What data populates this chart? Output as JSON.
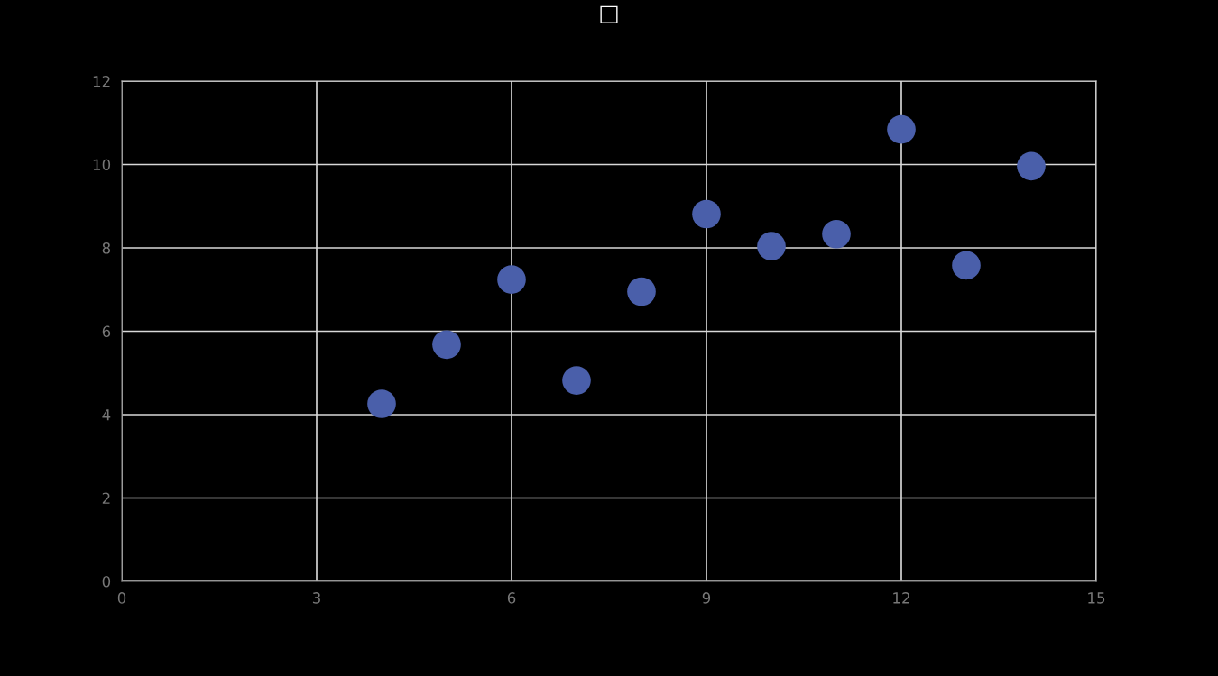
{
  "chart_data": {
    "type": "scatter",
    "title": "□",
    "x": [
      10,
      8,
      13,
      9,
      11,
      14,
      6,
      4,
      12,
      7,
      5
    ],
    "values": [
      8.04,
      6.95,
      7.58,
      8.81,
      8.33,
      9.96,
      7.24,
      4.26,
      10.84,
      4.82,
      5.68
    ],
    "color": "#4a5faa",
    "xlim": [
      0,
      15
    ],
    "xticks": [
      0,
      3,
      6,
      9,
      12,
      15
    ],
    "ylim": [
      0,
      12
    ],
    "yticks": [
      0,
      2,
      4,
      6,
      8,
      10,
      12
    ],
    "grid": true,
    "marker": "circle"
  }
}
